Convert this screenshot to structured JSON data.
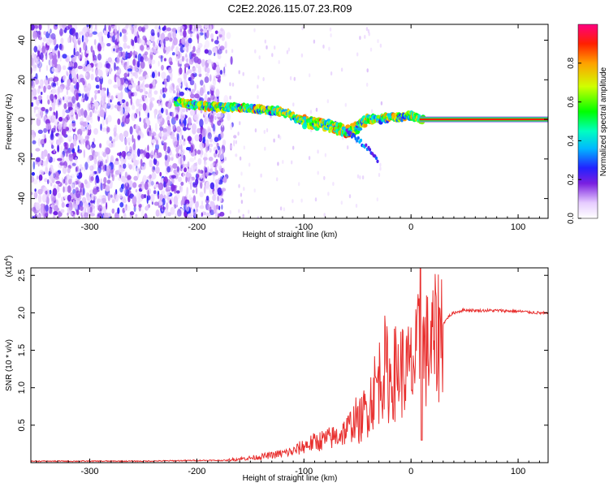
{
  "title": "C2E2.2026.115.07.23.R09",
  "chart_data": [
    {
      "type": "heatmap",
      "xlabel": "Height of straight line (km)",
      "ylabel": "Frequency (Hz)",
      "xlim": [
        -355,
        128
      ],
      "ylim": [
        -50,
        48
      ],
      "xticks": [
        -300,
        -200,
        -100,
        0,
        100
      ],
      "xtick_labels": [
        "-300",
        "-200",
        "-100",
        "0",
        "100"
      ],
      "yticks": [
        -40,
        -20,
        0,
        20,
        40
      ],
      "ytick_labels": [
        "-40",
        "-20",
        "0",
        "20",
        "40"
      ],
      "colorbar": {
        "label": "Normalized spectral amplitude",
        "range": [
          0,
          1
        ],
        "ticks": [
          0.0,
          0.2,
          0.4,
          0.6,
          0.8
        ],
        "tick_labels": [
          "0.0",
          "0.2",
          "0.4",
          "0.6",
          "0.8"
        ]
      },
      "ridge": {
        "x": [
          -220,
          -200,
          -180,
          -160,
          -140,
          -120,
          -100,
          -80,
          -60,
          -50,
          -40,
          -30,
          -20,
          -10,
          0,
          10,
          128
        ],
        "y": [
          9,
          7,
          6,
          6,
          5,
          4,
          -1,
          -3,
          -6,
          -4,
          0,
          0,
          1,
          1,
          2,
          0,
          0
        ]
      },
      "branches": [
        {
          "x": [
            -60,
            -50,
            -40,
            -30
          ],
          "y": [
            -6,
            -10,
            -15,
            -22
          ]
        }
      ],
      "noise_region_xlim": [
        -355,
        -175
      ]
    },
    {
      "type": "line",
      "xlabel": "Height of straight line (km)",
      "ylabel": "SNR (10 * v/v)",
      "yscale_label": "(x10",
      "yscale_exp": "4",
      "xlim": [
        -355,
        128
      ],
      "ylim": [
        0,
        2.6
      ],
      "xticks": [
        -300,
        -200,
        -100,
        0,
        100
      ],
      "xtick_labels": [
        "-300",
        "-200",
        "-100",
        "0",
        "100"
      ],
      "yticks": [
        0.5,
        1.0,
        1.5,
        2.0,
        2.5
      ],
      "ytick_labels": [
        "0.5",
        "1.0",
        "1.5",
        "2.0",
        "2.5"
      ],
      "series": [
        {
          "name": "SNR",
          "color": "#e8302f",
          "x": [
            -355,
            -300,
            -250,
            -200,
            -170,
            -150,
            -130,
            -110,
            -100,
            -90,
            -80,
            -70,
            -60,
            -50,
            -40,
            -35,
            -30,
            -25,
            -20,
            -15,
            -10,
            -5,
            0,
            5,
            8,
            10,
            15,
            20,
            25,
            30,
            35,
            40,
            50,
            60,
            80,
            100,
            128
          ],
          "y": [
            0.02,
            0.02,
            0.02,
            0.03,
            0.03,
            0.05,
            0.08,
            0.12,
            0.18,
            0.22,
            0.25,
            0.28,
            0.35,
            0.5,
            0.75,
            0.95,
            1.1,
            1.3,
            1.1,
            1.2,
            1.25,
            1.2,
            1.25,
            1.35,
            1.6,
            1.5,
            1.5,
            1.55,
            1.7,
            1.85,
            1.95,
            2.0,
            2.04,
            2.03,
            2.03,
            2.02,
            1.99
          ]
        }
      ]
    }
  ]
}
